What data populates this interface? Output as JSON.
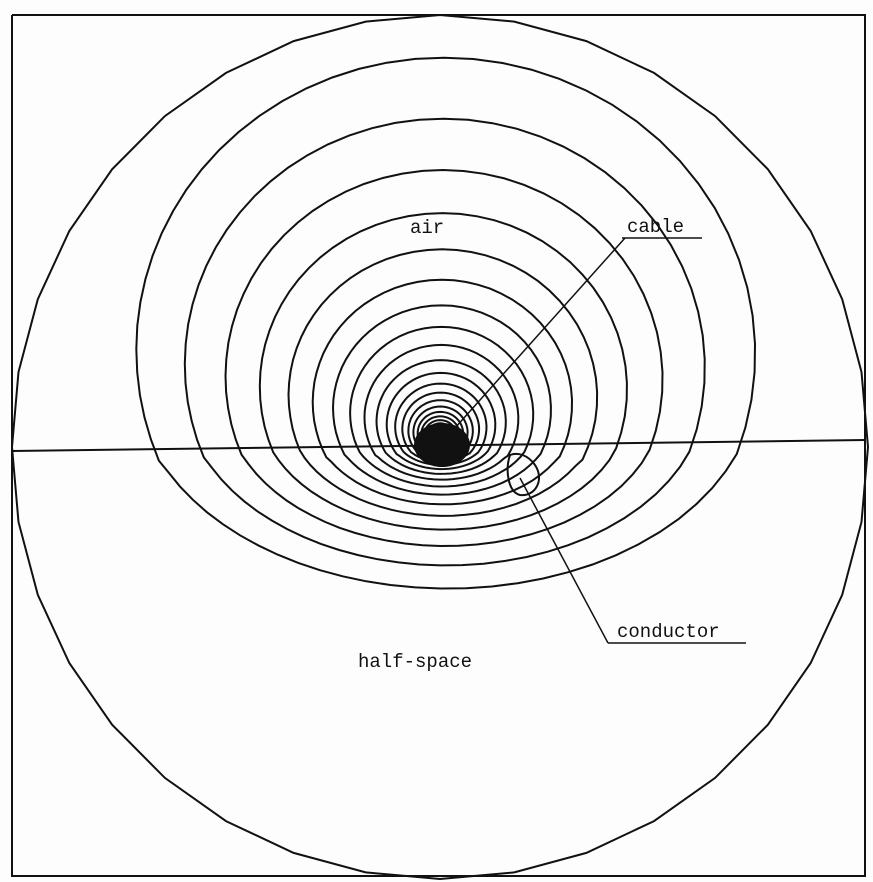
{
  "labels": {
    "air": "air",
    "cable": "cable",
    "half_space": "half-space",
    "conductor": "conductor"
  }
}
